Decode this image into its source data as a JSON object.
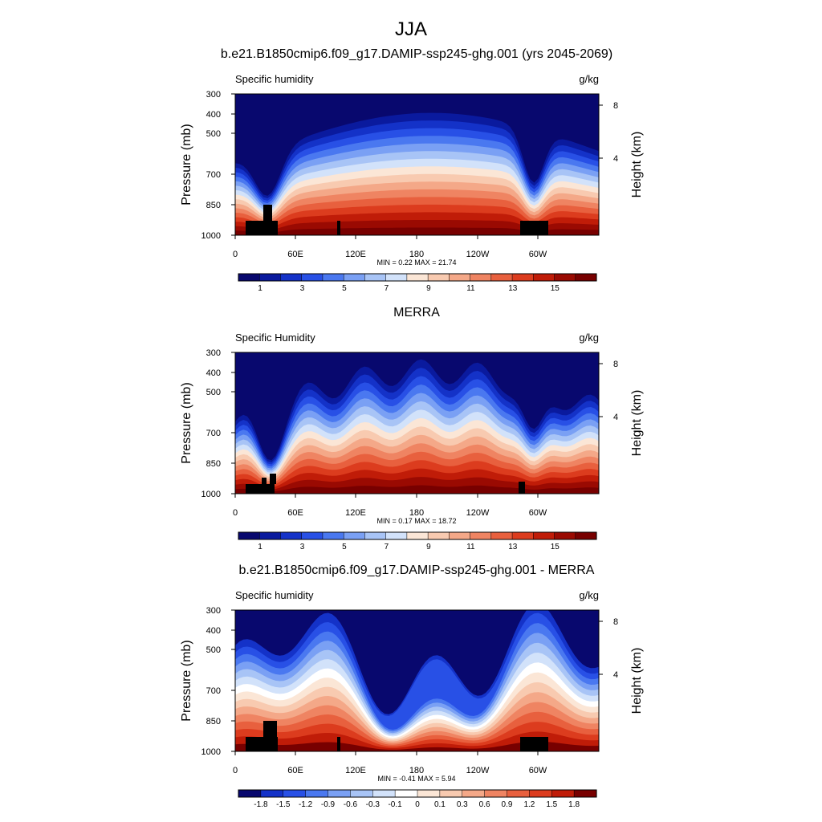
{
  "main_title": "JJA",
  "chart_data": [
    {
      "type": "heatmap",
      "title": "b.e21.B1850cmip6.f09_g17.DAMIP-ssp245-ghg.001 (yrs 2045-2069)",
      "left_label": "Specific humidity",
      "units": "g/kg",
      "ylabel": "Pressure (mb)",
      "ylabel_right": "Height (km)",
      "y_ticks": [
        "300",
        "400",
        "500",
        "700",
        "850",
        "1000"
      ],
      "y_right_ticks": [
        "8",
        "4"
      ],
      "x_ticks": [
        "0",
        "60E",
        "120E",
        "180",
        "120W",
        "60W"
      ],
      "minmax": "MIN =   0.22  MAX =  21.74",
      "min": 0.22,
      "max": 21.74,
      "colorbar_labels": [
        "1",
        "3",
        "5",
        "7",
        "9",
        "11",
        "13",
        "15"
      ],
      "levels": [
        0.5,
        1,
        1.5,
        2,
        3,
        4,
        5,
        6,
        7,
        8,
        9,
        10,
        11,
        12,
        13,
        14,
        15
      ]
    },
    {
      "type": "heatmap",
      "title": "MERRA",
      "left_label": "Specific Humidity",
      "units": "g/kg",
      "ylabel": "Pressure (mb)",
      "ylabel_right": "Height (km)",
      "y_ticks": [
        "300",
        "400",
        "500",
        "700",
        "850",
        "1000"
      ],
      "y_right_ticks": [
        "8",
        "4"
      ],
      "x_ticks": [
        "0",
        "60E",
        "120E",
        "180",
        "120W",
        "60W"
      ],
      "minmax": "MIN =   0.17  MAX =  18.72",
      "min": 0.17,
      "max": 18.72,
      "colorbar_labels": [
        "1",
        "3",
        "5",
        "7",
        "9",
        "11",
        "13",
        "15"
      ],
      "levels": [
        0.5,
        1,
        1.5,
        2,
        3,
        4,
        5,
        6,
        7,
        8,
        9,
        10,
        11,
        12,
        13,
        14,
        15
      ]
    },
    {
      "type": "heatmap",
      "title": "b.e21.B1850cmip6.f09_g17.DAMIP-ssp245-ghg.001 - MERRA",
      "left_label": "Specific humidity",
      "units": "g/kg",
      "ylabel": "Pressure (mb)",
      "ylabel_right": "Height (km)",
      "y_ticks": [
        "300",
        "400",
        "500",
        "700",
        "850",
        "1000"
      ],
      "y_right_ticks": [
        "8",
        "4"
      ],
      "x_ticks": [
        "0",
        "60E",
        "120E",
        "180",
        "120W",
        "60W"
      ],
      "minmax": "MIN =  -0.41  MAX =   5.94",
      "min": -0.41,
      "max": 5.94,
      "colorbar_labels": [
        "-1.8",
        "-1.5",
        "-1.2",
        "-0.9",
        "-0.6",
        "-0.3",
        "-0.1",
        "0",
        "0.1",
        "0.3",
        "0.6",
        "0.9",
        "1.2",
        "1.5",
        "1.8"
      ],
      "levels": [
        -1.8,
        -1.5,
        -1.2,
        -0.9,
        -0.6,
        -0.3,
        -0.1,
        0,
        0.1,
        0.3,
        0.6,
        0.9,
        1.2,
        1.5,
        1.8
      ]
    }
  ],
  "colors": {
    "seq": [
      "#08086e",
      "#0a1a9e",
      "#1432c8",
      "#2850e6",
      "#4a78f0",
      "#7aa0f4",
      "#a8c4f6",
      "#d2e2fa",
      "#fbe6d6",
      "#f8cab0",
      "#f4a888",
      "#ef8462",
      "#e8603e",
      "#dc3c1e",
      "#c01c08",
      "#9a0a02",
      "#780000"
    ],
    "div": [
      "#08086e",
      "#1432c8",
      "#2850e6",
      "#4a78f0",
      "#7aa0f4",
      "#a8c4f6",
      "#d2e2fa",
      "#ffffff",
      "#fbe6d6",
      "#f8cab0",
      "#f4a888",
      "#ef8462",
      "#e8603e",
      "#dc3c1e",
      "#c01c08",
      "#780000"
    ]
  }
}
